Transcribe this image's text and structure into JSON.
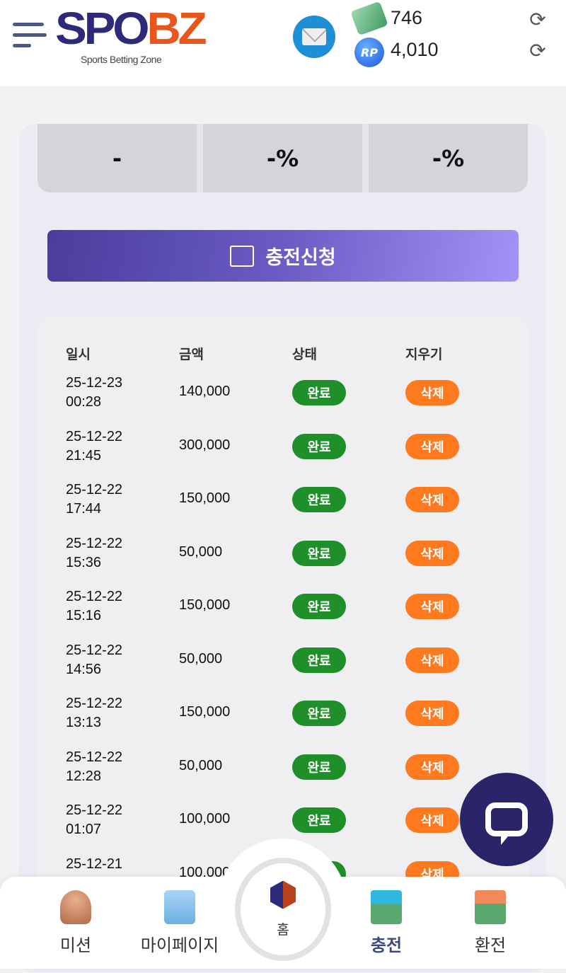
{
  "header": {
    "logo_main": "SPO",
    "logo_accent": "BZ",
    "logo_tagline": "Sports Betting Zone",
    "cash_balance": "746",
    "rp_balance": "4,010",
    "rp_badge": "RP"
  },
  "stats": {
    "values": [
      "-",
      "-%",
      "-%"
    ]
  },
  "charge_button": {
    "label": "충전신청"
  },
  "table": {
    "headers": [
      "일시",
      "금액",
      "상태",
      "지우기"
    ],
    "rows": [
      {
        "date": "25-12-23",
        "time": "00:28",
        "amount": "140,000",
        "status": "완료",
        "action": "삭제"
      },
      {
        "date": "25-12-22",
        "time": "21:45",
        "amount": "300,000",
        "status": "완료",
        "action": "삭제"
      },
      {
        "date": "25-12-22",
        "time": "17:44",
        "amount": "150,000",
        "status": "완료",
        "action": "삭제"
      },
      {
        "date": "25-12-22",
        "time": "15:36",
        "amount": "50,000",
        "status": "완료",
        "action": "삭제"
      },
      {
        "date": "25-12-22",
        "time": "15:16",
        "amount": "150,000",
        "status": "완료",
        "action": "삭제"
      },
      {
        "date": "25-12-22",
        "time": "14:56",
        "amount": "50,000",
        "status": "완료",
        "action": "삭제"
      },
      {
        "date": "25-12-22",
        "time": "13:13",
        "amount": "150,000",
        "status": "완료",
        "action": "삭제"
      },
      {
        "date": "25-12-22",
        "time": "12:28",
        "amount": "50,000",
        "status": "완료",
        "action": "삭제"
      },
      {
        "date": "25-12-22",
        "time": "01:07",
        "amount": "100,000",
        "status": "완료",
        "action": "삭제"
      },
      {
        "date": "25-12-21",
        "time": "",
        "amount": "100,000",
        "status": "완료",
        "action": "삭제"
      }
    ]
  },
  "nav": {
    "mission": "미션",
    "mypage": "마이페이지",
    "home": "홈",
    "deposit": "충전",
    "withdraw": "환전"
  },
  "colors": {
    "brand_navy": "#2d2a7a",
    "brand_orange": "#e8561c",
    "status_green": "#1f8f2a",
    "delete_orange": "#ff7a1f",
    "chat_bg": "#2a2468"
  }
}
